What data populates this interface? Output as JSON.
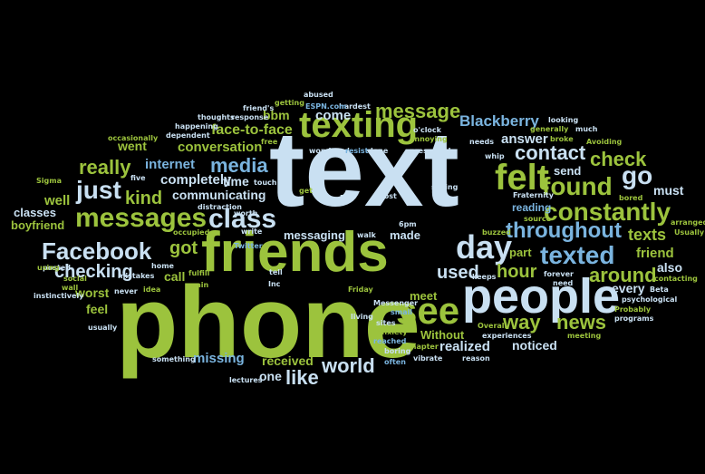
{
  "palette": {
    "background": "#000000",
    "light_blue": "#c9e0f2",
    "lime_green": "#9cc33d",
    "olive_green": "#8aa83a",
    "sky_blue": "#7ab4df",
    "pale_green": "#cfe3a0"
  },
  "words": [
    "text",
    "phone",
    "friends",
    "people",
    "texting",
    "see",
    "day",
    "felt",
    "messages",
    "found",
    "constantly",
    "Facebook",
    "class",
    "texted",
    "just",
    "message",
    "media",
    "go",
    "throughout",
    "check",
    "contact",
    "checking",
    "kind",
    "really",
    "around",
    "like",
    "world",
    "got",
    "hour",
    "way",
    "news",
    "used",
    "Blackberry",
    "texts",
    "friend",
    "face-to-face",
    "conversation",
    "completely",
    "internet",
    "communicating",
    "time",
    "bbm",
    "answer",
    "come",
    "went",
    "realized",
    "noticed",
    "received",
    "one",
    "missing",
    "worst",
    "feel",
    "call",
    "every",
    "also",
    "must",
    "messaging",
    "made",
    "part",
    "meet",
    "Without",
    "boyfriend",
    "classes",
    "well",
    "send",
    "reading",
    "abused",
    "hardest",
    "ESPN.com",
    "friend's",
    "getting",
    "thoughts",
    "response",
    "happening",
    "dependent",
    "occasionally",
    "wondered",
    "resist",
    "done",
    "pressured",
    "annoying",
    "o'clock",
    "needs",
    "generally",
    "broke",
    "Avoiding",
    "looking",
    "much",
    "whip",
    "Sigma",
    "five",
    "worth",
    "touch",
    "distraction",
    "write",
    "Twitter",
    "Phi",
    "get",
    "sitting",
    "host",
    "bored",
    "Fraternity",
    "source",
    "buzzed",
    "arranged",
    "Usually",
    "Beta",
    "contacting",
    "psychological",
    "Probably",
    "programs",
    "forever",
    "need",
    "keeps",
    "Overall",
    "experiences",
    "meeting",
    "reason",
    "vibrate",
    "boring",
    "often",
    "chapter",
    "anxiety",
    "reached",
    "sites",
    "living",
    "small",
    "Messenger",
    "Friday",
    "walk",
    "6pm",
    "tell",
    "Inc",
    "fulfill",
    "main",
    "home",
    "social",
    "posted",
    "wall",
    "using",
    "instinctively",
    "usually",
    "mistakes",
    "never",
    "something",
    "lectures",
    "idea",
    "free",
    "occupied"
  ]
}
